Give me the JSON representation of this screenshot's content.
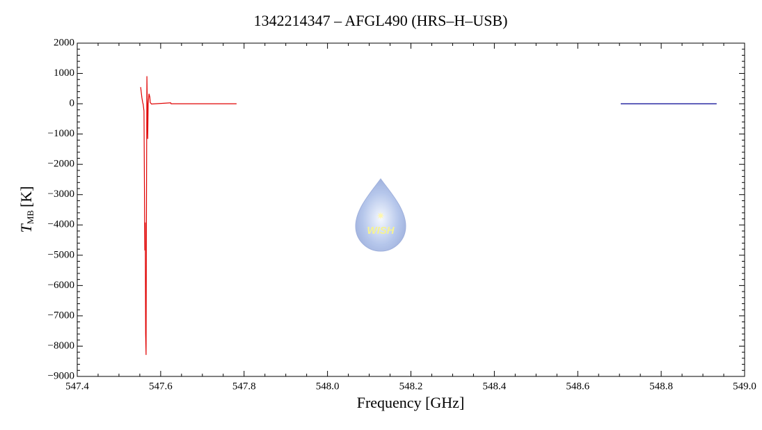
{
  "chart_data": {
    "type": "line",
    "title": "1342214347 – AFGL490 (HRS–H–USB)",
    "xlabel": "Frequency [GHz]",
    "ylabel": {
      "symbol": "T",
      "subscript": "MB",
      "unit": "[K]"
    },
    "watermark": "WISH",
    "xlim": [
      547.4,
      549.0
    ],
    "xticks": [
      547.4,
      547.6,
      547.8,
      {
        "value": 548.0,
        "label": "548.0"
      },
      548.2,
      548.4,
      548.6,
      548.8,
      {
        "value": 549.0,
        "label": "549.0"
      }
    ],
    "ylim": [
      -9000,
      2000
    ],
    "yticks": [
      {
        "value": -9000,
        "label": "−9000"
      },
      {
        "value": -8000,
        "label": "−8000"
      },
      {
        "value": -7000,
        "label": "−7000"
      },
      {
        "value": -6000,
        "label": "−6000"
      },
      {
        "value": -5000,
        "label": "−5000"
      },
      {
        "value": -4000,
        "label": "−4000"
      },
      {
        "value": -3000,
        "label": "−3000"
      },
      {
        "value": -2000,
        "label": "−2000"
      },
      {
        "value": -1000,
        "label": "−1000"
      },
      0,
      1000,
      2000
    ],
    "series": [
      {
        "color": "#e00000",
        "x": [
          547.552,
          547.555,
          547.557,
          547.558,
          547.56,
          547.562,
          547.563,
          547.564,
          547.565,
          547.566,
          547.567,
          547.569,
          547.57,
          547.572,
          547.574,
          547.575,
          547.578,
          547.624,
          547.625,
          547.782
        ],
        "values": [
          550,
          200,
          30,
          -10,
          -240,
          -4840,
          -3920,
          -7600,
          -8290,
          -3230,
          910,
          -1160,
          -10,
          330,
          220,
          40,
          -10,
          30,
          0,
          0
        ]
      },
      {
        "color": "#000090",
        "x": [
          548.703,
          548.8,
          548.933
        ],
        "values": [
          0,
          0,
          0
        ]
      }
    ]
  }
}
